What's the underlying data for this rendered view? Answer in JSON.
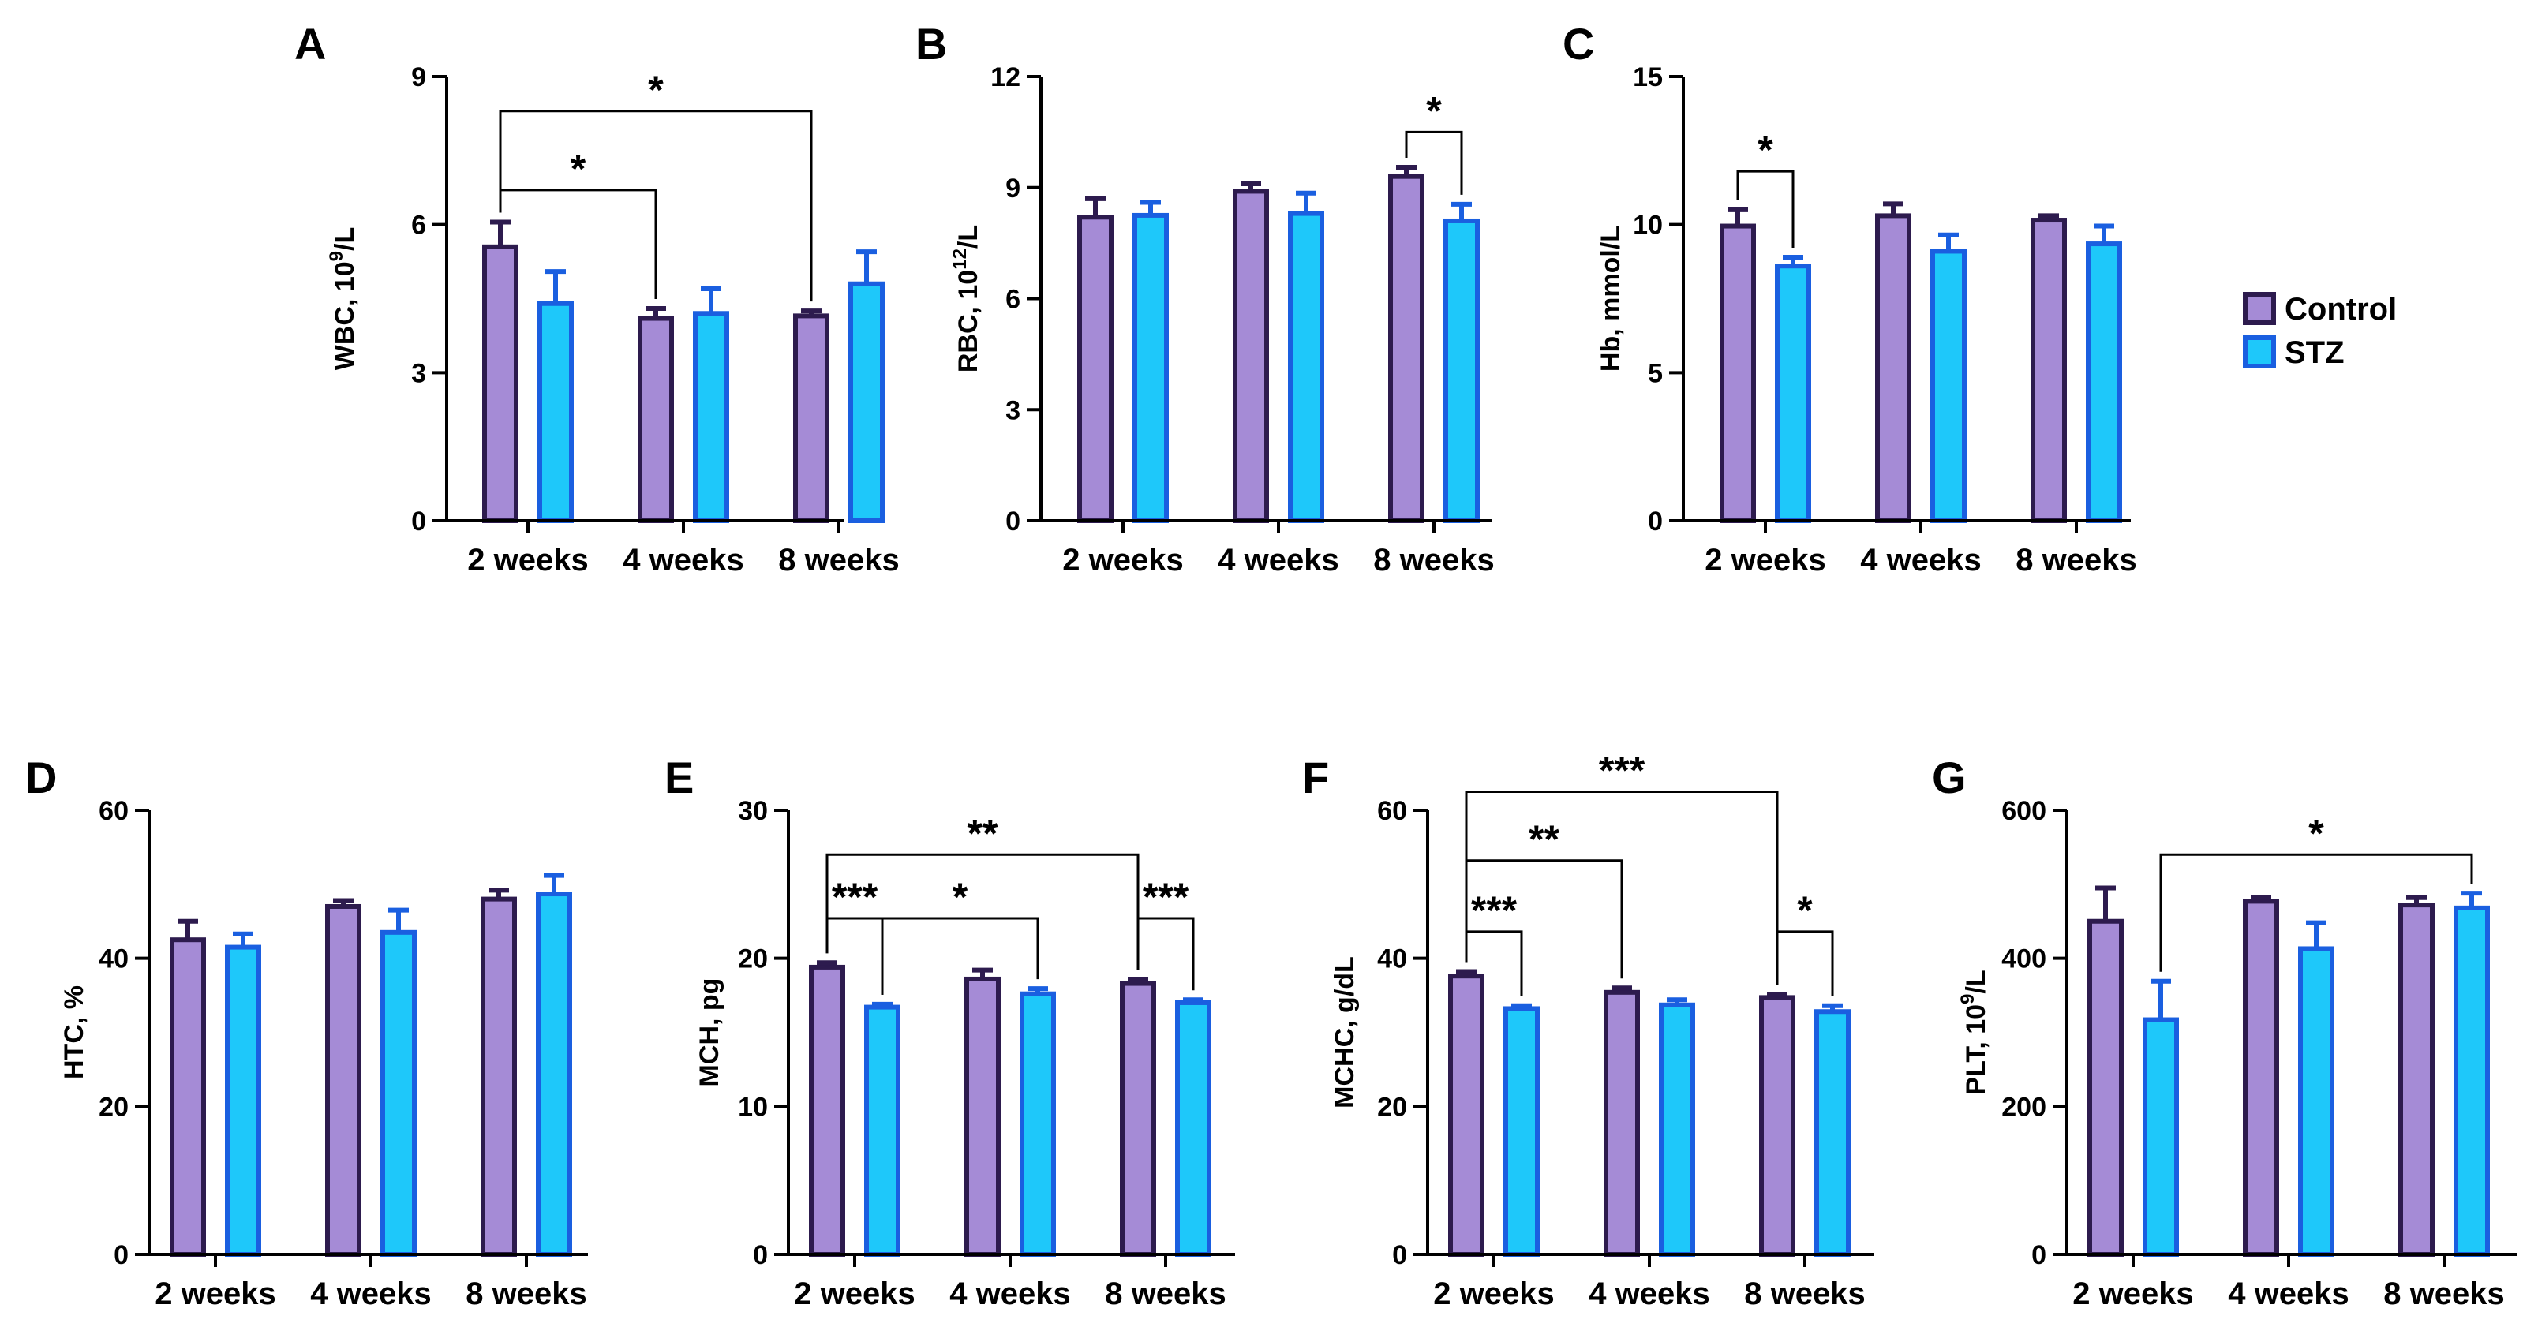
{
  "figure": {
    "legend": {
      "entries": [
        {
          "name": "Control",
          "fill": "#a58bd6",
          "stroke": "#2d1b4e"
        },
        {
          "name": "STZ",
          "fill": "#1ec8fa",
          "stroke": "#1a5fe0"
        }
      ]
    }
  },
  "chart_data": [
    {
      "panel": "A",
      "type": "bar",
      "ylabel_main": "WBC, 10",
      "ylabel_sup": "9",
      "ylabel_tail": "/L",
      "categories": [
        "2 weeks",
        "4 weeks",
        "8 weeks"
      ],
      "ylim": [
        0,
        9
      ],
      "yticks": [
        0,
        3,
        6,
        9
      ],
      "series": [
        {
          "name": "Control",
          "values": [
            5.55,
            4.1,
            4.15
          ],
          "errors": [
            0.5,
            0.2,
            0.1
          ]
        },
        {
          "name": "STZ",
          "values": [
            4.4,
            4.2,
            4.8
          ],
          "errors": [
            0.65,
            0.5,
            0.65
          ]
        }
      ],
      "brackets": [
        {
          "from": [
            0,
            0
          ],
          "to": [
            1,
            0
          ],
          "label": "*",
          "y": 6.7
        },
        {
          "from": [
            0,
            0
          ],
          "to": [
            2,
            0
          ],
          "label": "*",
          "y": 8.3
        }
      ]
    },
    {
      "panel": "B",
      "type": "bar",
      "ylabel_main": "RBC, 10",
      "ylabel_sup": "12",
      "ylabel_tail": "/L",
      "categories": [
        "2 weeks",
        "4 weeks",
        "8 weeks"
      ],
      "ylim": [
        0,
        12
      ],
      "yticks": [
        0,
        3,
        6,
        9,
        12
      ],
      "series": [
        {
          "name": "Control",
          "values": [
            8.2,
            8.9,
            9.3
          ],
          "errors": [
            0.5,
            0.2,
            0.25
          ]
        },
        {
          "name": "STZ",
          "values": [
            8.25,
            8.3,
            8.1
          ],
          "errors": [
            0.35,
            0.55,
            0.45
          ]
        }
      ],
      "brackets": [
        {
          "from": [
            2,
            0
          ],
          "to": [
            2,
            1
          ],
          "label": "*",
          "y": 10.5
        }
      ]
    },
    {
      "panel": "C",
      "type": "bar",
      "ylabel_main": "Hb, mmol/L",
      "categories": [
        "2 weeks",
        "4 weeks",
        "8 weeks"
      ],
      "ylim": [
        0,
        15
      ],
      "yticks": [
        0,
        5,
        10,
        15
      ],
      "series": [
        {
          "name": "Control",
          "values": [
            9.95,
            10.3,
            10.15
          ],
          "errors": [
            0.55,
            0.4,
            0.15
          ]
        },
        {
          "name": "STZ",
          "values": [
            8.6,
            9.1,
            9.35
          ],
          "errors": [
            0.3,
            0.55,
            0.6
          ]
        }
      ],
      "brackets": [
        {
          "from": [
            0,
            0
          ],
          "to": [
            0,
            1
          ],
          "label": "*",
          "y": 11.8
        }
      ]
    },
    {
      "panel": "D",
      "type": "bar",
      "ylabel_main": "HTC, %",
      "categories": [
        "2 weeks",
        "4 weeks",
        "8 weeks"
      ],
      "ylim": [
        0,
        60
      ],
      "yticks": [
        0,
        20,
        40,
        60
      ],
      "series": [
        {
          "name": "Control",
          "values": [
            42.5,
            47,
            48
          ],
          "errors": [
            2.5,
            0.8,
            1.2
          ]
        },
        {
          "name": "STZ",
          "values": [
            41.5,
            43.5,
            48.7
          ],
          "errors": [
            1.8,
            3.0,
            2.5
          ]
        }
      ],
      "brackets": []
    },
    {
      "panel": "E",
      "type": "bar",
      "ylabel_main": "MCH, pg",
      "categories": [
        "2 weeks",
        "4 weeks",
        "8 weeks"
      ],
      "ylim": [
        0,
        30
      ],
      "yticks": [
        0,
        10,
        20,
        30
      ],
      "series": [
        {
          "name": "Control",
          "values": [
            19.4,
            18.6,
            18.3
          ],
          "errors": [
            0.3,
            0.6,
            0.3
          ]
        },
        {
          "name": "STZ",
          "values": [
            16.7,
            17.6,
            17.0
          ],
          "errors": [
            0.2,
            0.35,
            0.2
          ]
        }
      ],
      "brackets": [
        {
          "from": [
            0,
            0
          ],
          "to": [
            2,
            0
          ],
          "label": "**",
          "y": 27.0
        },
        {
          "from": [
            0,
            0
          ],
          "to": [
            0,
            1
          ],
          "label": "***",
          "y": 22.7
        },
        {
          "from": [
            0,
            1
          ],
          "to": [
            1,
            1
          ],
          "label": "*",
          "y": 22.7
        },
        {
          "from": [
            2,
            0
          ],
          "to": [
            2,
            1
          ],
          "label": "***",
          "y": 22.7
        }
      ]
    },
    {
      "panel": "F",
      "type": "bar",
      "ylabel_main": "MCHC, g/dL",
      "categories": [
        "2 weeks",
        "4 weeks",
        "8 weeks"
      ],
      "ylim": [
        0,
        60
      ],
      "yticks": [
        0,
        20,
        40,
        60
      ],
      "series": [
        {
          "name": "Control",
          "values": [
            37.6,
            35.4,
            34.7
          ],
          "errors": [
            0.6,
            0.6,
            0.4
          ]
        },
        {
          "name": "STZ",
          "values": [
            33.2,
            33.7,
            32.8
          ],
          "errors": [
            0.4,
            0.7,
            0.8
          ]
        }
      ],
      "brackets": [
        {
          "from": [
            0,
            0
          ],
          "to": [
            2,
            0
          ],
          "label": "***",
          "y": 62.5
        },
        {
          "from": [
            0,
            0
          ],
          "to": [
            1,
            0
          ],
          "label": "**",
          "y": 53.2
        },
        {
          "from": [
            0,
            0
          ],
          "to": [
            0,
            1
          ],
          "label": "***",
          "y": 43.6
        },
        {
          "from": [
            2,
            0
          ],
          "to": [
            2,
            1
          ],
          "label": "*",
          "y": 43.6
        }
      ]
    },
    {
      "panel": "G",
      "type": "bar",
      "ylabel_main": "PLT, 10",
      "ylabel_sup": "9",
      "ylabel_tail": "/L",
      "categories": [
        "2 weeks",
        "4 weeks",
        "8 weeks"
      ],
      "ylim": [
        0,
        600
      ],
      "yticks": [
        0,
        200,
        400,
        600
      ],
      "series": [
        {
          "name": "Control",
          "values": [
            450,
            477,
            472
          ],
          "errors": [
            45,
            5,
            10
          ]
        },
        {
          "name": "STZ",
          "values": [
            317,
            413,
            468
          ],
          "errors": [
            52,
            35,
            20
          ]
        }
      ],
      "brackets": [
        {
          "from": [
            0,
            1
          ],
          "to": [
            2,
            1
          ],
          "label": "*",
          "y": 540
        }
      ]
    }
  ]
}
